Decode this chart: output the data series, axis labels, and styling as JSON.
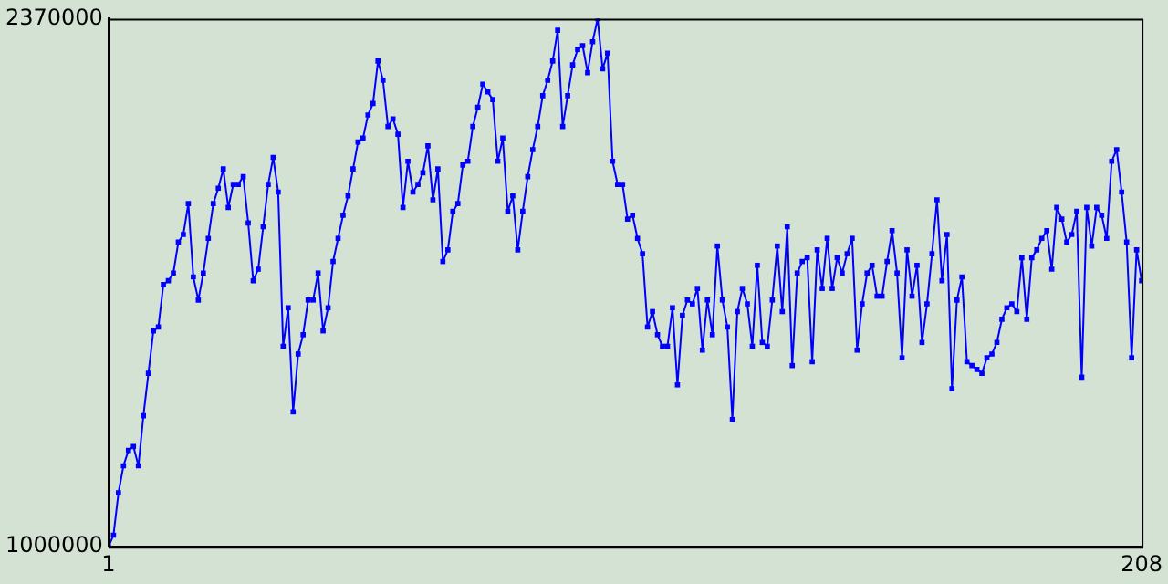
{
  "chart_data": {
    "type": "line",
    "marker": "square",
    "line_style": "solid",
    "grid": false,
    "legend": false,
    "xlim": [
      1,
      208
    ],
    "xticks": [
      1,
      208
    ],
    "ylim": [
      1000000,
      2370000
    ],
    "yticks": [
      1000000,
      2370000
    ],
    "x": [
      1,
      2,
      3,
      4,
      5,
      6,
      7,
      8,
      9,
      10,
      11,
      12,
      13,
      14,
      15,
      16,
      17,
      18,
      19,
      20,
      21,
      22,
      23,
      24,
      25,
      26,
      27,
      28,
      29,
      30,
      31,
      32,
      33,
      34,
      35,
      36,
      37,
      38,
      39,
      40,
      41,
      42,
      43,
      44,
      45,
      46,
      47,
      48,
      49,
      50,
      51,
      52,
      53,
      54,
      55,
      56,
      57,
      58,
      59,
      60,
      61,
      62,
      63,
      64,
      65,
      66,
      67,
      68,
      69,
      70,
      71,
      72,
      73,
      74,
      75,
      76,
      77,
      78,
      79,
      80,
      81,
      82,
      83,
      84,
      85,
      86,
      87,
      88,
      89,
      90,
      91,
      92,
      93,
      94,
      95,
      96,
      97,
      98,
      99,
      100,
      101,
      102,
      103,
      104,
      105,
      106,
      107,
      108,
      109,
      110,
      111,
      112,
      113,
      114,
      115,
      116,
      117,
      118,
      119,
      120,
      121,
      122,
      123,
      124,
      125,
      126,
      127,
      128,
      129,
      130,
      131,
      132,
      133,
      134,
      135,
      136,
      137,
      138,
      139,
      140,
      141,
      142,
      143,
      144,
      145,
      146,
      147,
      148,
      149,
      150,
      151,
      152,
      153,
      154,
      155,
      156,
      157,
      158,
      159,
      160,
      161,
      162,
      163,
      164,
      165,
      166,
      167,
      168,
      169,
      170,
      171,
      172,
      173,
      174,
      175,
      176,
      177,
      178,
      179,
      180,
      181,
      182,
      183,
      184,
      185,
      186,
      187,
      188,
      189,
      190,
      191,
      192,
      193,
      194,
      195,
      196,
      197,
      198,
      199,
      200,
      201,
      202,
      203,
      204,
      205,
      206,
      207,
      208
    ],
    "series": [
      {
        "color": "#0000ff",
        "values": [
          1000000,
          1030000,
          1140000,
          1210000,
          1250000,
          1260000,
          1210000,
          1340000,
          1450000,
          1560000,
          1570000,
          1680000,
          1690000,
          1710000,
          1790000,
          1810000,
          1890000,
          1700000,
          1640000,
          1710000,
          1800000,
          1890000,
          1930000,
          1980000,
          1880000,
          1940000,
          1940000,
          1960000,
          1840000,
          1690000,
          1720000,
          1830000,
          1940000,
          2010000,
          1920000,
          1520000,
          1620000,
          1350000,
          1500000,
          1550000,
          1640000,
          1640000,
          1710000,
          1560000,
          1620000,
          1740000,
          1800000,
          1860000,
          1910000,
          1980000,
          2050000,
          2060000,
          2120000,
          2150000,
          2260000,
          2210000,
          2090000,
          2110000,
          2070000,
          1880000,
          2000000,
          1920000,
          1940000,
          1970000,
          2040000,
          1900000,
          1980000,
          1740000,
          1770000,
          1870000,
          1890000,
          1990000,
          2000000,
          2090000,
          2140000,
          2200000,
          2180000,
          2160000,
          2000000,
          2060000,
          1870000,
          1910000,
          1770000,
          1870000,
          1960000,
          2030000,
          2090000,
          2170000,
          2210000,
          2260000,
          2340000,
          2090000,
          2170000,
          2250000,
          2290000,
          2300000,
          2230000,
          2310000,
          2370000,
          2240000,
          2280000,
          2000000,
          1940000,
          1940000,
          1850000,
          1860000,
          1800000,
          1760000,
          1570000,
          1610000,
          1550000,
          1520000,
          1520000,
          1620000,
          1420000,
          1600000,
          1640000,
          1630000,
          1670000,
          1510000,
          1640000,
          1550000,
          1780000,
          1640000,
          1570000,
          1330000,
          1610000,
          1670000,
          1630000,
          1520000,
          1730000,
          1530000,
          1520000,
          1640000,
          1780000,
          1610000,
          1830000,
          1470000,
          1710000,
          1740000,
          1750000,
          1480000,
          1770000,
          1670000,
          1800000,
          1670000,
          1750000,
          1710000,
          1760000,
          1800000,
          1510000,
          1630000,
          1710000,
          1730000,
          1650000,
          1650000,
          1740000,
          1820000,
          1710000,
          1490000,
          1770000,
          1650000,
          1730000,
          1530000,
          1630000,
          1760000,
          1900000,
          1690000,
          1810000,
          1410000,
          1640000,
          1700000,
          1480000,
          1470000,
          1460000,
          1450000,
          1490000,
          1500000,
          1530000,
          1590000,
          1620000,
          1630000,
          1610000,
          1750000,
          1590000,
          1750000,
          1770000,
          1800000,
          1820000,
          1720000,
          1880000,
          1850000,
          1790000,
          1810000,
          1870000,
          1440000,
          1880000,
          1780000,
          1880000,
          1860000,
          1800000,
          2000000,
          2030000,
          1920000,
          1790000,
          1490000,
          1770000,
          1690000
        ]
      }
    ]
  }
}
